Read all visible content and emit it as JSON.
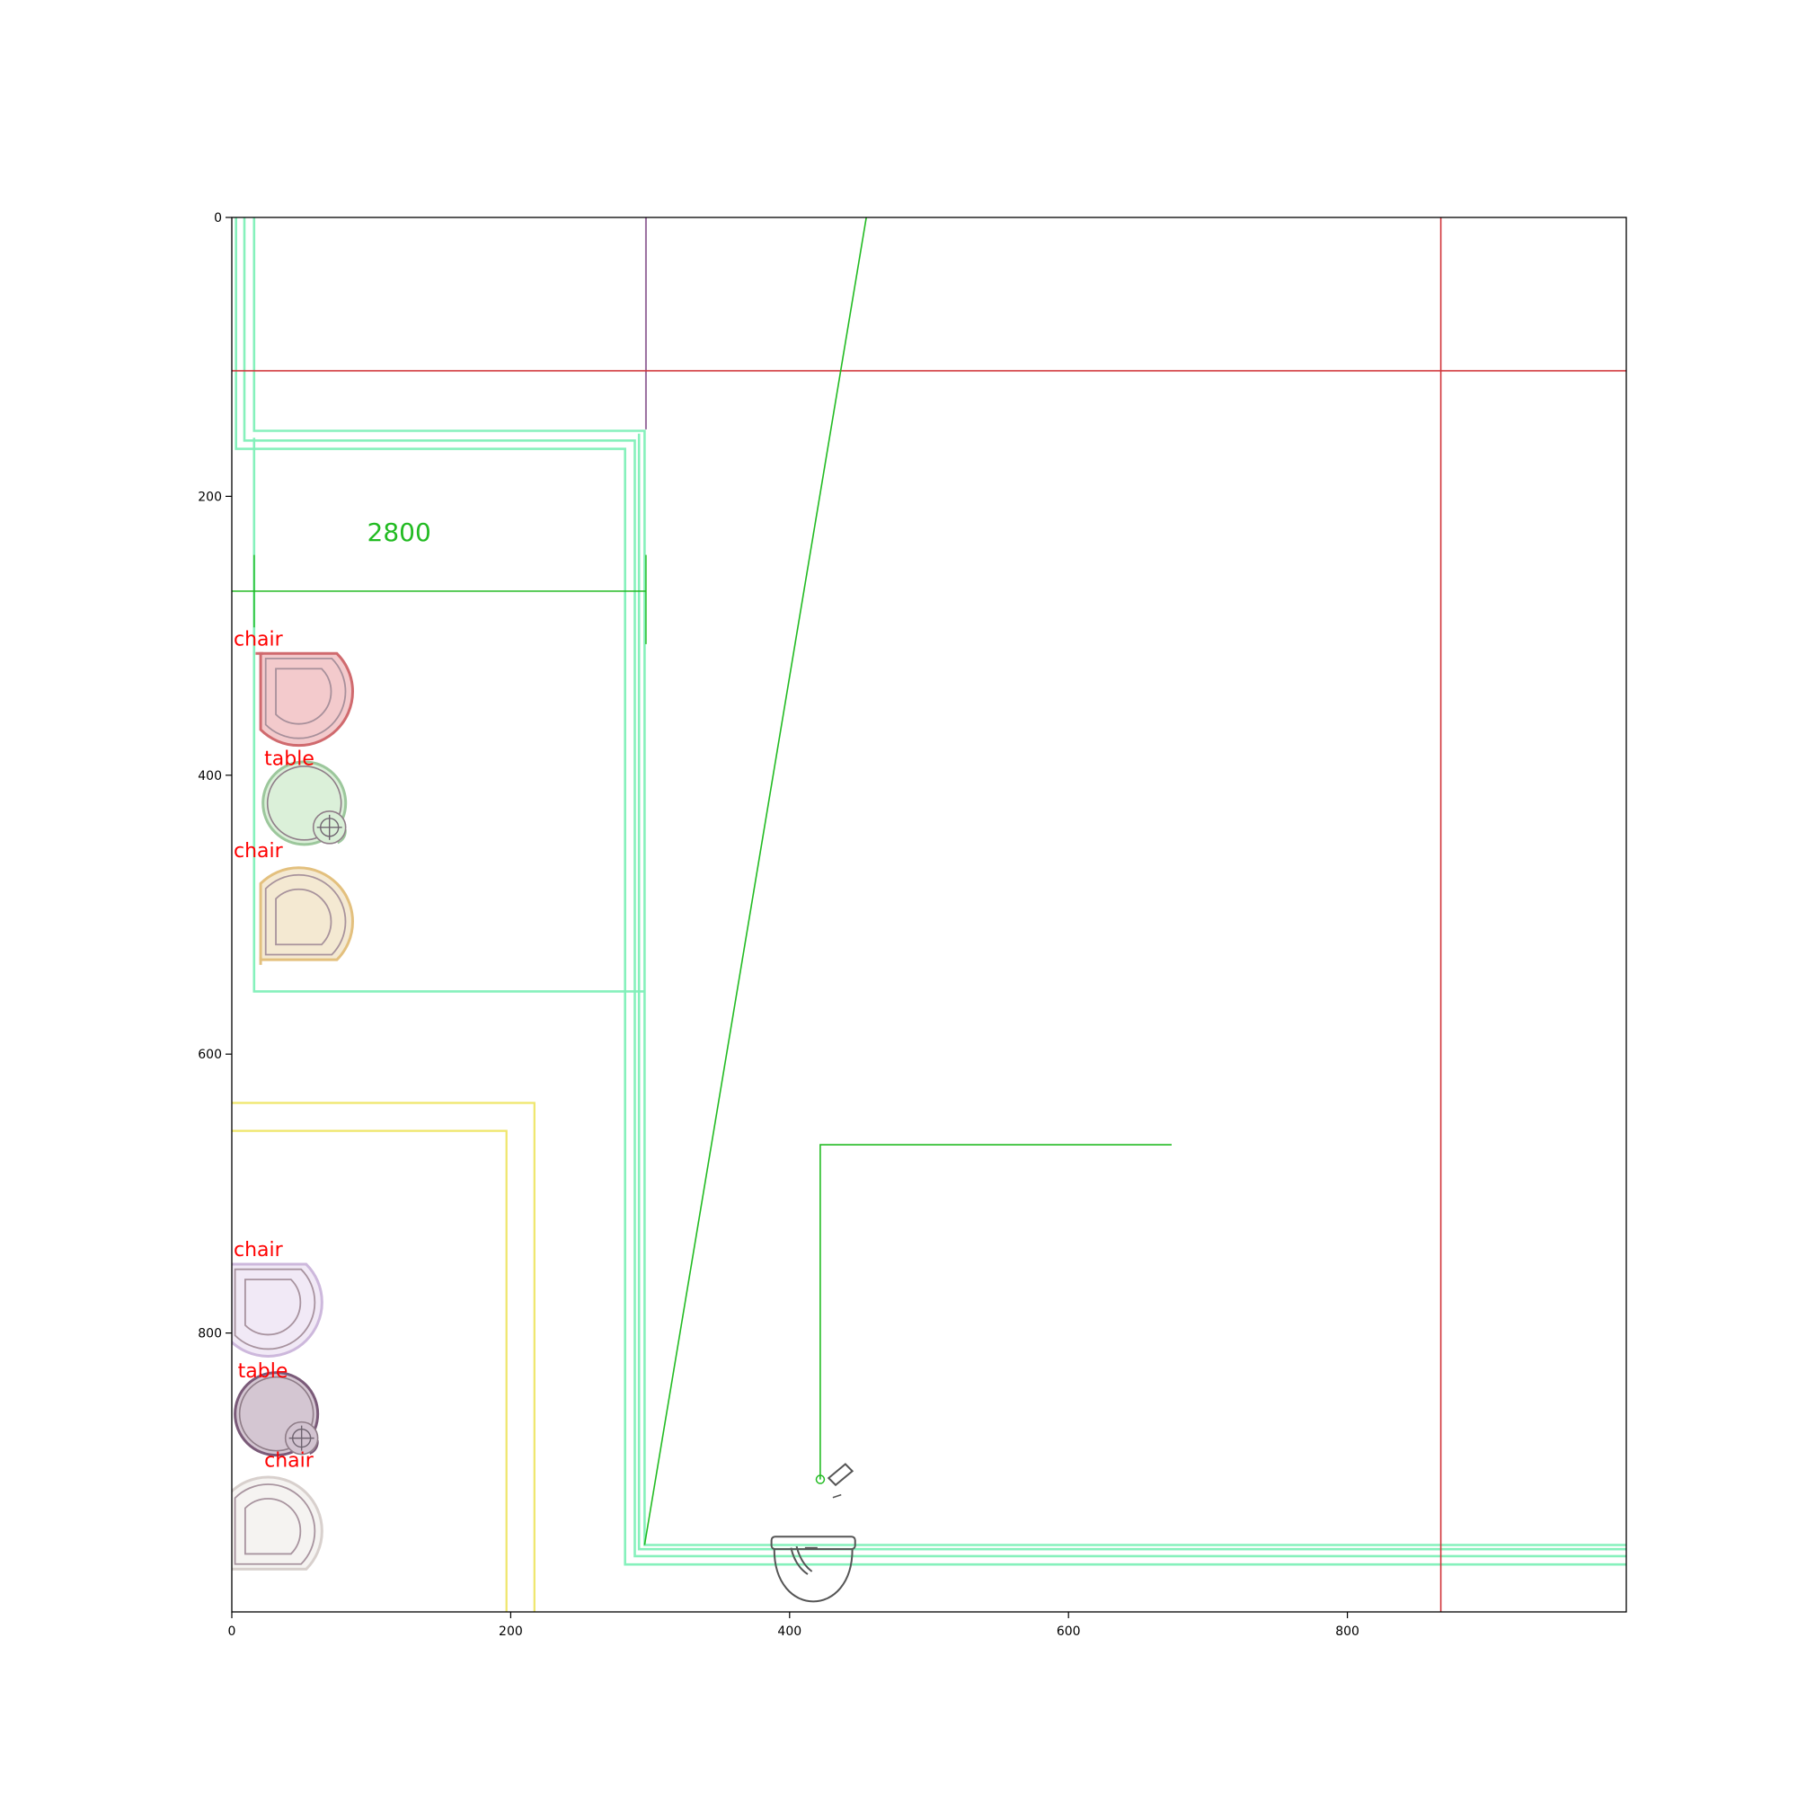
{
  "chart_data": {
    "type": "floor-plan",
    "xlim": [
      0,
      1000
    ],
    "ylim": [
      1000,
      0
    ],
    "x_ticks": [
      {
        "value": 0,
        "label": "0"
      },
      {
        "value": 200,
        "label": "200"
      },
      {
        "value": 400,
        "label": "400"
      },
      {
        "value": 600,
        "label": "600"
      },
      {
        "value": 800,
        "label": "800"
      }
    ],
    "y_ticks": [
      {
        "value": 0,
        "label": "0"
      },
      {
        "value": 200,
        "label": "200"
      },
      {
        "value": 400,
        "label": "400"
      },
      {
        "value": 600,
        "label": "600"
      },
      {
        "value": 800,
        "label": "800"
      }
    ],
    "dimension": {
      "label": "2800",
      "x_start": 16,
      "x_end": 297,
      "y": 268,
      "color": "#22bb22"
    },
    "objects": [
      {
        "label": "chair",
        "x": 48,
        "y": 340,
        "rotation": 135,
        "fill": "#f2c4c6",
        "stroke": "#d06a6e"
      },
      {
        "label": "table",
        "x": 52,
        "y": 420,
        "fill": "#d9efd7",
        "stroke": "#9cc79c"
      },
      {
        "label": "chair",
        "x": 48,
        "y": 505,
        "rotation": 45,
        "fill": "#f3e7cd",
        "stroke": "#e3c07e"
      },
      {
        "label": "chair",
        "x": 26,
        "y": 778,
        "rotation": 135,
        "fill": "#efe7f5",
        "stroke": "#cdb8dc"
      },
      {
        "label": "table",
        "x": 32,
        "y": 858,
        "fill": "#d2c3d0",
        "stroke": "#7a5a78"
      },
      {
        "label": "chair",
        "x": 26,
        "y": 942,
        "rotation": 45,
        "fill": "#f4f2ef",
        "stroke": "#d8d0cd"
      }
    ],
    "colors": {
      "wall": "#7ff0b8",
      "red_line": "#d0343a",
      "green_line": "#22bb22",
      "purple_line": "#9a6f9f",
      "yellow_line": "#efe66a",
      "fixture": "#555555",
      "label": "#ff0000"
    }
  }
}
